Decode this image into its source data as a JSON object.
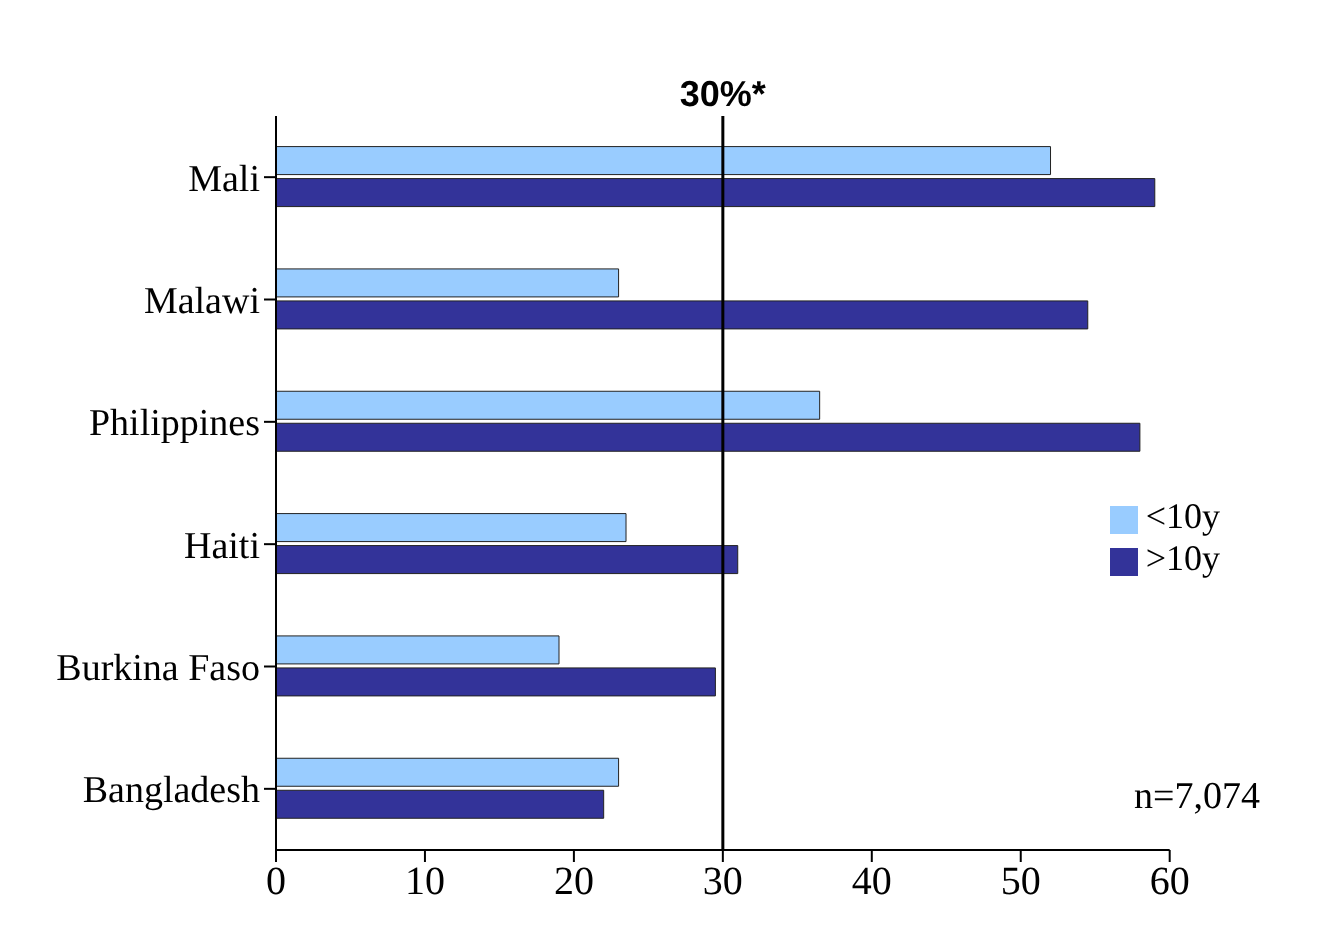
{
  "chart_data": {
    "type": "bar",
    "orientation": "horizontal",
    "categories": [
      "Mali",
      "Malawi",
      "Philippines",
      "Haiti",
      "Burkina Faso",
      "Bangladesh"
    ],
    "series": [
      {
        "name": "<10y",
        "color": "#99ccff",
        "values": [
          52,
          23,
          36.5,
          23.5,
          19,
          23
        ]
      },
      {
        "name": ">10y",
        "color": "#333399",
        "values": [
          59,
          54.5,
          58,
          31,
          29.5,
          22
        ]
      }
    ],
    "xlim": [
      0,
      60
    ],
    "xticks": [
      0,
      10,
      20,
      30,
      40,
      50,
      60
    ],
    "grid": false,
    "legend": "right",
    "ref_lines": [
      {
        "axis": "x",
        "value": 30,
        "label": "30%*",
        "color": "#000000"
      }
    ],
    "annotations": [
      "n=7,074"
    ]
  }
}
